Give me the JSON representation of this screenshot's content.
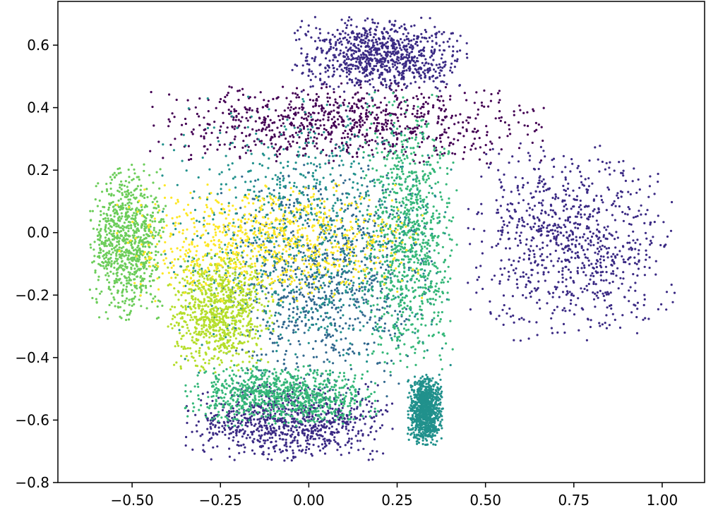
{
  "chart_data": {
    "type": "scatter",
    "title": "",
    "xlabel": "",
    "ylabel": "",
    "xlim": [
      -0.71,
      1.12
    ],
    "ylim": [
      -0.8,
      0.74
    ],
    "x_ticks": [
      -0.5,
      -0.25,
      0.0,
      0.25,
      0.5,
      0.75,
      1.0
    ],
    "x_tick_labels": [
      "−0.50",
      "−0.25",
      "0.00",
      "0.25",
      "0.50",
      "0.75",
      "1.00"
    ],
    "y_ticks": [
      0.6,
      0.4,
      0.2,
      0.0,
      -0.2,
      -0.4,
      -0.6,
      -0.8
    ],
    "y_tick_labels": [
      "0.6",
      "0.4",
      "0.2",
      "0.0",
      "−0.2",
      "−0.4",
      "−0.6",
      "−0.8"
    ],
    "grid": false,
    "legend": "none",
    "colormap": "viridis",
    "colors": [
      "#440154",
      "#3b2a84",
      "#31688e",
      "#21918c",
      "#35b779",
      "#6ccd5a",
      "#b5de2b",
      "#fde725"
    ],
    "clusters": [
      {
        "color_index": 0,
        "region": "upper band",
        "x_range": [
          -0.45,
          0.68
        ],
        "y_range": [
          0.22,
          0.48
        ]
      },
      {
        "color_index": 1,
        "region": "top dome",
        "x_range": [
          -0.05,
          0.45
        ],
        "y_range": [
          0.45,
          0.69
        ]
      },
      {
        "color_index": 1,
        "region": "right crescent",
        "x_range": [
          0.45,
          1.04
        ],
        "y_range": [
          -0.35,
          0.3
        ]
      },
      {
        "color_index": 1,
        "region": "bottom crescent",
        "x_range": [
          -0.35,
          0.25
        ],
        "y_range": [
          -0.73,
          -0.48
        ]
      },
      {
        "color_index": 2,
        "region": "center core",
        "x_range": [
          -0.25,
          0.35
        ],
        "y_range": [
          -0.55,
          0.25
        ]
      },
      {
        "color_index": 3,
        "region": "center overlap",
        "x_range": [
          -0.42,
          0.42
        ],
        "y_range": [
          -0.45,
          0.45
        ]
      },
      {
        "color_index": 3,
        "region": "lower tail",
        "x_range": [
          0.28,
          0.38
        ],
        "y_range": [
          -0.68,
          -0.45
        ]
      },
      {
        "color_index": 4,
        "region": "right vertical band",
        "x_range": [
          0.15,
          0.42
        ],
        "y_range": [
          -0.45,
          0.45
        ]
      },
      {
        "color_index": 4,
        "region": "lower arc",
        "x_range": [
          -0.35,
          0.2
        ],
        "y_range": [
          -0.62,
          -0.42
        ]
      },
      {
        "color_index": 5,
        "region": "left blob",
        "x_range": [
          -0.62,
          -0.4
        ],
        "y_range": [
          -0.28,
          0.22
        ]
      },
      {
        "color_index": 6,
        "region": "left-center blob",
        "x_range": [
          -0.4,
          -0.1
        ],
        "y_range": [
          -0.45,
          -0.05
        ]
      },
      {
        "color_index": 7,
        "region": "center-left band",
        "x_range": [
          -0.55,
          0.34
        ],
        "y_range": [
          -0.22,
          0.16
        ]
      }
    ]
  }
}
